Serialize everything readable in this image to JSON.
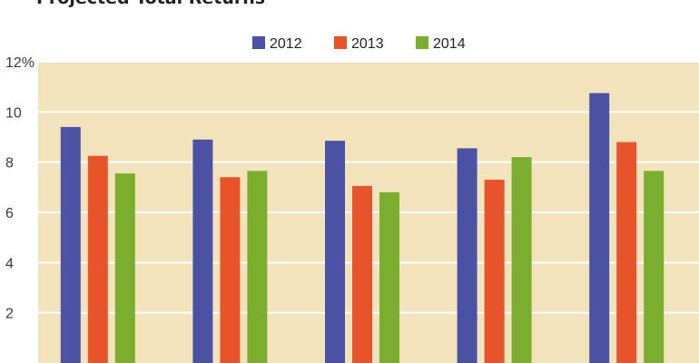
{
  "chart_data": {
    "type": "bar",
    "title": "Projected Total Returns",
    "categories": [
      "",
      "",
      "",
      "",
      ""
    ],
    "series": [
      {
        "name": "2012",
        "color": "#4b51a3",
        "values": [
          9.4,
          8.9,
          8.85,
          8.55,
          10.75
        ]
      },
      {
        "name": "2013",
        "color": "#e8542a",
        "values": [
          8.25,
          7.4,
          7.05,
          7.3,
          8.8
        ]
      },
      {
        "name": "2014",
        "color": "#7bad2f",
        "values": [
          7.55,
          7.65,
          6.8,
          8.2,
          7.65
        ]
      }
    ],
    "y_ticks": [
      {
        "value": 2,
        "label": "2"
      },
      {
        "value": 4,
        "label": "4"
      },
      {
        "value": 6,
        "label": "6"
      },
      {
        "value": 8,
        "label": "8"
      },
      {
        "value": 10,
        "label": "10"
      },
      {
        "value": 12,
        "label": "12%"
      }
    ],
    "ylim": [
      0,
      12
    ],
    "xlabel": "",
    "ylabel": "",
    "grid": true,
    "plot_background": "#f3e3bd",
    "gridline_color": "#ffffff",
    "legend_position": "top-center"
  }
}
